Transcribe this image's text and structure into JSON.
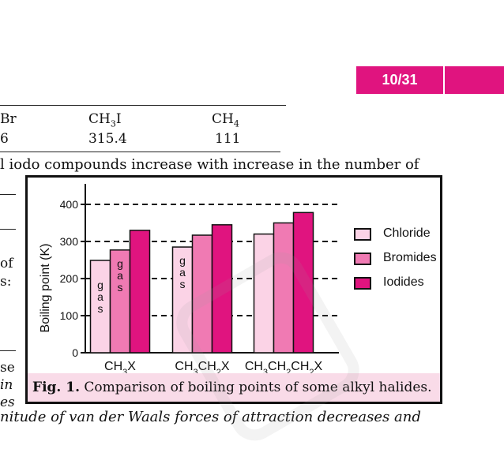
{
  "page": {
    "number_badge": "10/31",
    "accent_color": "#e0147f",
    "caption_bg": "#f9dbe8"
  },
  "table": {
    "header": [
      "Br",
      "CH3I",
      "CH4"
    ],
    "values": [
      "6",
      "315.4",
      "111"
    ]
  },
  "text": {
    "top_line": "l iodo compounds increase with increase in the number of",
    "left_frag_1": "of",
    "left_frag_2": "s:",
    "left_frag_3": "se",
    "left_frag_4": "in",
    "left_frag_5": "es",
    "bottom_line": "nitude of van der Waals forces of attraction decreases and"
  },
  "figure": {
    "caption_label": "Fig. 1.",
    "caption_text": "Comparison of boiling points of some alkyl halides."
  },
  "chart_data": {
    "type": "bar",
    "ylabel": "Boiling point (K)",
    "ylim": [
      0,
      400
    ],
    "yticks": [
      0,
      100,
      200,
      300,
      400
    ],
    "grid": "dashed at 100, 200, 300, 400",
    "legend_position": "right",
    "categories": [
      "CH3X",
      "CH3CH2X",
      "CH3CH2CH2X"
    ],
    "series": [
      {
        "name": "Chloride",
        "color": "#fbd3e6",
        "values": [
          249,
          285,
          320
        ]
      },
      {
        "name": "Bromides",
        "color": "#f07ab3",
        "values": [
          277,
          317,
          350
        ]
      },
      {
        "name": "Iodides",
        "color": "#e0147f",
        "values": [
          330,
          345,
          378
        ]
      }
    ],
    "annotations": [
      {
        "category_index": 0,
        "series_index": 0,
        "text": "gas"
      },
      {
        "category_index": 0,
        "series_index": 1,
        "text": "gas"
      },
      {
        "category_index": 1,
        "series_index": 0,
        "text": "gas"
      }
    ]
  }
}
